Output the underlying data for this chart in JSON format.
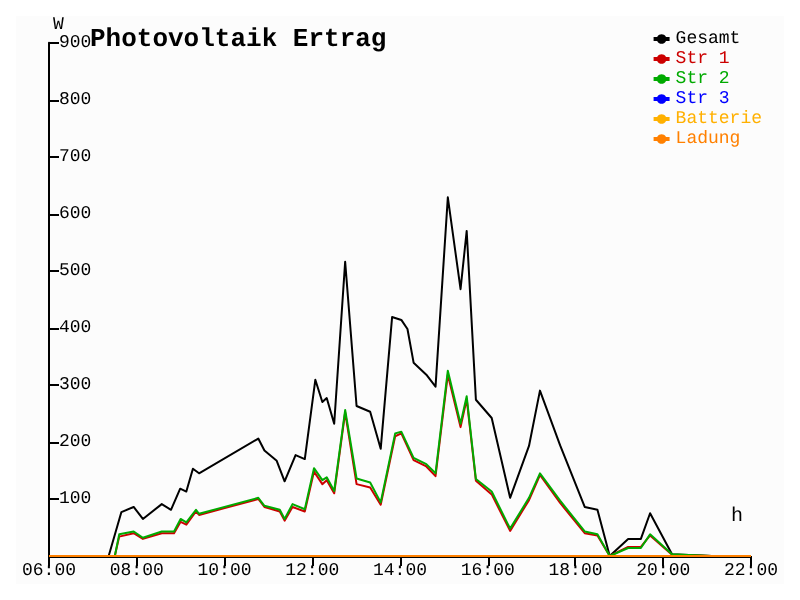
{
  "chart_data": {
    "type": "line",
    "title": "Photovoltaik Ertrag",
    "xlabel": "h",
    "ylabel": "W",
    "xlim": [
      6,
      22
    ],
    "xticks": [
      {
        "value": 6,
        "label": "06:00"
      },
      {
        "value": 8,
        "label": "08:00"
      },
      {
        "value": 10,
        "label": "10:00"
      },
      {
        "value": 12,
        "label": "12:00"
      },
      {
        "value": 14,
        "label": "14:00"
      },
      {
        "value": 16,
        "label": "16:00"
      },
      {
        "value": 18,
        "label": "18:00"
      },
      {
        "value": 20,
        "label": "20:00"
      },
      {
        "value": 22,
        "label": "22:00"
      }
    ],
    "ylim": [
      0,
      900
    ],
    "yticks": [
      100,
      200,
      300,
      400,
      500,
      600,
      700,
      800,
      900
    ],
    "grid": false,
    "legend": "top right",
    "marker": "none",
    "line_style": "solid",
    "series": [
      {
        "name": "Gesamt",
        "color": "#000000",
        "x": [
          7.36,
          7.65,
          7.93,
          8.14,
          8.57,
          8.78,
          8.99,
          9.13,
          9.28,
          9.42,
          10.77,
          10.91,
          11.19,
          11.37,
          11.62,
          11.83,
          12.07,
          12.23,
          12.33,
          12.5,
          12.75,
          13.01,
          13.32,
          13.56,
          13.82,
          14.03,
          14.17,
          14.31,
          14.6,
          14.81,
          15.09,
          15.38,
          15.52,
          15.73,
          16.09,
          16.51,
          16.94,
          17.19,
          17.65,
          18.21,
          18.5,
          18.78,
          19.2,
          19.49,
          19.7,
          20.2,
          21.1
        ],
        "values": [
          0,
          77,
          86,
          65,
          91,
          81,
          118,
          113,
          153,
          145,
          206,
          185,
          167,
          131,
          177,
          170,
          309,
          270,
          277,
          232,
          516,
          263,
          253,
          188,
          419,
          414,
          398,
          339,
          318,
          297,
          629,
          468,
          570,
          274,
          242,
          102,
          193,
          290,
          194,
          86,
          81,
          0,
          30,
          30,
          75,
          3,
          0
        ]
      },
      {
        "name": "Str 1",
        "color": "#cc0000",
        "x": [
          7.5,
          7.6,
          7.93,
          8.14,
          8.57,
          8.85,
          9.0,
          9.13,
          9.35,
          9.42,
          10.77,
          10.91,
          11.26,
          11.37,
          11.55,
          11.83,
          12.04,
          12.23,
          12.33,
          12.5,
          12.75,
          13.01,
          13.32,
          13.56,
          13.89,
          14.03,
          14.31,
          14.6,
          14.81,
          15.09,
          15.38,
          15.52,
          15.73,
          16.09,
          16.51,
          16.94,
          17.19,
          17.65,
          18.21,
          18.5,
          18.78,
          19.2,
          19.49,
          19.7,
          20.2,
          21.1
        ],
        "values": [
          0,
          34,
          40,
          30,
          40,
          40,
          60,
          55,
          78,
          72,
          100,
          86,
          78,
          62,
          86,
          78,
          148,
          126,
          133,
          110,
          252,
          126,
          120,
          90,
          210,
          215,
          168,
          157,
          140,
          318,
          226,
          275,
          132,
          108,
          44,
          98,
          142,
          93,
          40,
          36,
          0,
          16,
          16,
          36,
          2,
          0
        ]
      },
      {
        "name": "Str 2",
        "color": "#00aa00",
        "x": [
          7.5,
          7.6,
          7.93,
          8.14,
          8.57,
          8.85,
          9.0,
          9.13,
          9.35,
          9.42,
          10.77,
          10.91,
          11.26,
          11.37,
          11.55,
          11.83,
          12.04,
          12.23,
          12.33,
          12.5,
          12.75,
          13.01,
          13.32,
          13.56,
          13.89,
          14.03,
          14.31,
          14.6,
          14.81,
          15.09,
          15.38,
          15.52,
          15.73,
          16.09,
          16.51,
          16.94,
          17.19,
          17.65,
          18.21,
          18.5,
          18.78,
          19.2,
          19.49,
          19.7,
          20.2,
          21.1
        ],
        "values": [
          0,
          38,
          43,
          32,
          43,
          43,
          65,
          59,
          81,
          74,
          102,
          88,
          81,
          65,
          91,
          82,
          154,
          133,
          138,
          114,
          256,
          136,
          129,
          94,
          215,
          218,
          172,
          161,
          145,
          325,
          232,
          280,
          135,
          113,
          48,
          102,
          145,
          97,
          43,
          38,
          0,
          14,
          14,
          38,
          3,
          0
        ]
      },
      {
        "name": "Str 3",
        "color": "#0000ff"
      },
      {
        "name": "Batterie",
        "color": "#ffb000"
      },
      {
        "name": "Ladung",
        "color": "#ff8000",
        "x": [
          6,
          22
        ],
        "values": [
          0,
          0
        ]
      }
    ]
  }
}
